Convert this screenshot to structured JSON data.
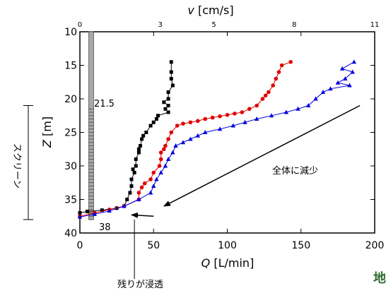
{
  "chart_data": {
    "type": "line",
    "xlabel_bottom": {
      "italic": "Q",
      "rest": " [L/min]"
    },
    "xlabel_top": {
      "italic": "v",
      "rest": " [cm/s]"
    },
    "ylabel": {
      "italic": "Z",
      "rest": " [m]"
    },
    "xlim": [
      0,
      200
    ],
    "ylim": [
      10,
      40
    ],
    "y_inverted": true,
    "x_ticks": [
      "0",
      "50",
      "100",
      "150",
      "200"
    ],
    "top_ticks": [
      "0",
      "3",
      "5",
      "8",
      "11"
    ],
    "y_ticks": [
      "10",
      "15",
      "20",
      "25",
      "30",
      "35",
      "40"
    ],
    "top_tick_q": [
      0,
      54.5,
      90.9,
      145.5,
      200
    ],
    "annotations": {
      "screen_top_depth": "21.5",
      "screen_bottom_depth": "38",
      "trend_label": "全体に減少",
      "seepage_label": "残りが浸透",
      "side_label": "スクリーン",
      "corner_mark": "地"
    },
    "colors": {
      "series_black": "#000000",
      "series_red": "#e00000",
      "series_blue": "#0000dd",
      "well": "#a8a8a8"
    },
    "series": [
      {
        "marker": "square",
        "points": [
          [
            62,
            14.5
          ],
          [
            62,
            16
          ],
          [
            62,
            17
          ],
          [
            63,
            18
          ],
          [
            60,
            19
          ],
          [
            60,
            20
          ],
          [
            57,
            20.5
          ],
          [
            60,
            21
          ],
          [
            58,
            21.5
          ],
          [
            60,
            22
          ],
          [
            53,
            22.5
          ],
          [
            52,
            23
          ],
          [
            50,
            23.5
          ],
          [
            48,
            24
          ],
          [
            45,
            25
          ],
          [
            43,
            25.5
          ],
          [
            42,
            26
          ],
          [
            41,
            27
          ],
          [
            40,
            27.5
          ],
          [
            40,
            28
          ],
          [
            38,
            29
          ],
          [
            38,
            30
          ],
          [
            36,
            30.5
          ],
          [
            37,
            31
          ],
          [
            35,
            32
          ],
          [
            35,
            33
          ],
          [
            34,
            34
          ],
          [
            32,
            35
          ],
          [
            30,
            36
          ],
          [
            25,
            36.3
          ],
          [
            15,
            36.6
          ],
          [
            5,
            36.8
          ],
          [
            0,
            37
          ]
        ]
      },
      {
        "marker": "circle",
        "points": [
          [
            143,
            14.5
          ],
          [
            137,
            15
          ],
          [
            135,
            16
          ],
          [
            133,
            17
          ],
          [
            131,
            18
          ],
          [
            128,
            19
          ],
          [
            126,
            19.5
          ],
          [
            124,
            20
          ],
          [
            120,
            21
          ],
          [
            115,
            21.5
          ],
          [
            110,
            22
          ],
          [
            105,
            22.2
          ],
          [
            100,
            22.4
          ],
          [
            95,
            22.6
          ],
          [
            90,
            22.8
          ],
          [
            85,
            23
          ],
          [
            80,
            23.3
          ],
          [
            75,
            23.5
          ],
          [
            70,
            23.7
          ],
          [
            66,
            24
          ],
          [
            62,
            25
          ],
          [
            60,
            26
          ],
          [
            58,
            27
          ],
          [
            57,
            27.5
          ],
          [
            55,
            28
          ],
          [
            55,
            29
          ],
          [
            54,
            30
          ],
          [
            50,
            31
          ],
          [
            48,
            32
          ],
          [
            44,
            32.6
          ],
          [
            42,
            33.2
          ],
          [
            40,
            34
          ],
          [
            40,
            35
          ],
          [
            30,
            36
          ],
          [
            20,
            36.5
          ],
          [
            10,
            37
          ],
          [
            0,
            37.5
          ]
        ]
      },
      {
        "marker": "triangle",
        "points": [
          [
            186,
            14.5
          ],
          [
            178,
            15.5
          ],
          [
            185,
            16
          ],
          [
            180,
            17
          ],
          [
            175,
            17.6
          ],
          [
            183,
            18
          ],
          [
            170,
            18.5
          ],
          [
            165,
            19
          ],
          [
            160,
            20
          ],
          [
            155,
            21
          ],
          [
            148,
            21.5
          ],
          [
            140,
            22
          ],
          [
            130,
            22.5
          ],
          [
            120,
            23
          ],
          [
            112,
            23.5
          ],
          [
            104,
            24
          ],
          [
            95,
            24.5
          ],
          [
            85,
            25
          ],
          [
            80,
            25.5
          ],
          [
            75,
            26
          ],
          [
            70,
            26.5
          ],
          [
            65,
            27
          ],
          [
            63,
            28
          ],
          [
            60,
            29
          ],
          [
            58,
            30
          ],
          [
            55,
            31
          ],
          [
            52,
            32
          ],
          [
            50,
            33
          ],
          [
            48,
            34
          ],
          [
            40,
            35
          ],
          [
            30,
            36
          ],
          [
            20,
            36.7
          ],
          [
            10,
            37.2
          ],
          [
            0,
            37.6
          ]
        ]
      }
    ]
  }
}
